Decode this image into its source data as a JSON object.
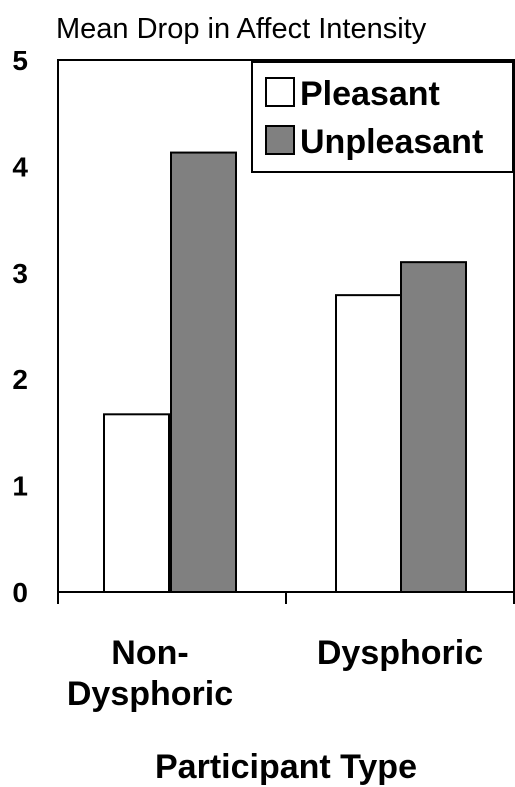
{
  "chart_data": {
    "type": "bar",
    "ylabel": "Mean Drop in Affect Intensity",
    "xlabel": "Participant Type",
    "ylim": [
      0,
      5
    ],
    "yticks": [
      "0",
      "1",
      "2",
      "3",
      "4",
      "5"
    ],
    "categories": [
      [
        "Non-",
        "Dysphoric"
      ],
      [
        "Dysphoric"
      ]
    ],
    "series": [
      {
        "name": "Pleasant",
        "values": [
          1.67,
          2.79
        ],
        "color": "#ffffff"
      },
      {
        "name": "Unpleasant",
        "values": [
          4.13,
          3.1
        ],
        "color": "#808080"
      }
    ],
    "legend": "top-right",
    "grid": false
  }
}
